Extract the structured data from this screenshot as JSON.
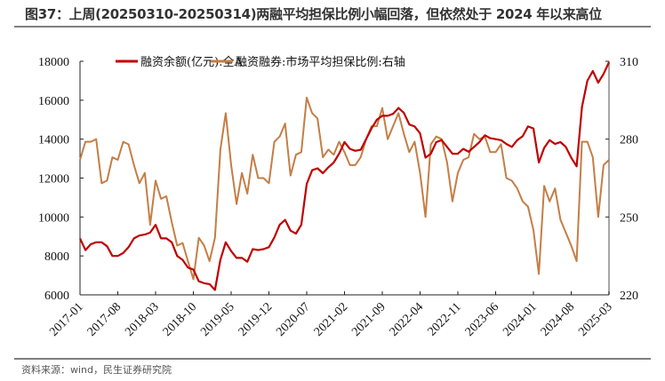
{
  "title": "图37：上周(20250310-20250314)两融平均担保比例小幅回落，但依然处于 2024 年以来高位",
  "source": "资料来源：wind，民生证券研究院",
  "chart_data": {
    "type": "line",
    "title": "图37：上周(20250310-20250314)两融平均担保比例小幅回落，但依然处于 2024 年以来高位",
    "legend_placement": "top",
    "x_start": "2017-01",
    "x_frequency": "monthly",
    "x_tick_labels": [
      "2017-01",
      "2017-08",
      "2018-03",
      "2018-10",
      "2019-05",
      "2019-12",
      "2020-07",
      "2021-02",
      "2021-09",
      "2022-04",
      "2022-11",
      "2023-06",
      "2024-01",
      "2024-08",
      "2025-03"
    ],
    "y_left": {
      "label": "",
      "range": [
        6000,
        18000
      ],
      "ticks": [
        "6000",
        "8000",
        "10000",
        "12000",
        "14000",
        "16000",
        "18000"
      ]
    },
    "y_right": {
      "label": "",
      "range": [
        220,
        310
      ],
      "ticks": [
        "220",
        "250",
        "280",
        "310"
      ]
    },
    "grid": false,
    "series": [
      {
        "name": "融资余额(亿元):全A",
        "axis": "left",
        "color": "#C00000",
        "values": [
          8900,
          8300,
          8600,
          8700,
          8700,
          8500,
          8000,
          8000,
          8150,
          8450,
          8900,
          9050,
          9100,
          9200,
          9600,
          8900,
          8900,
          8700,
          8000,
          7800,
          7400,
          7300,
          6700,
          6600,
          6550,
          6250,
          7800,
          8700,
          8250,
          7900,
          7900,
          7700,
          8350,
          8300,
          8350,
          8450,
          8950,
          9600,
          9850,
          9300,
          9150,
          9600,
          11700,
          12400,
          12500,
          12250,
          12550,
          12800,
          13250,
          13850,
          13500,
          13400,
          13450,
          14000,
          14550,
          15000,
          15200,
          15200,
          15300,
          15600,
          15350,
          14750,
          14650,
          14300,
          13050,
          13250,
          13850,
          13950,
          13600,
          13250,
          13250,
          13500,
          13350,
          13600,
          13850,
          14200,
          14050,
          14000,
          13950,
          13750,
          13600,
          13950,
          14150,
          14650,
          14550,
          12800,
          13550,
          13950,
          13750,
          13850,
          13600,
          13050,
          12600,
          15650,
          17000,
          17500,
          16900,
          17350,
          17950
        ]
      },
      {
        "name": "融资融券:市场平均担保比例:右轴",
        "axis": "right",
        "color": "#C47E45",
        "values": [
          272,
          279,
          279,
          280,
          263,
          264,
          273,
          272,
          279,
          278,
          270,
          263,
          267,
          247,
          264,
          257,
          258,
          248,
          239,
          240,
          233,
          226,
          242,
          239,
          233,
          242,
          276,
          290,
          270,
          255,
          267,
          259,
          274,
          265,
          265,
          263,
          279,
          281,
          286,
          266,
          274,
          275,
          296,
          290,
          288,
          273,
          276,
          274,
          279,
          275,
          270,
          270,
          273,
          280,
          285,
          285,
          292,
          280,
          285,
          290,
          282,
          275,
          279,
          267,
          250,
          278,
          281,
          280,
          271,
          256,
          267,
          272,
          273,
          282,
          280,
          281,
          275,
          275,
          278,
          265,
          264,
          261,
          256,
          254,
          245,
          228,
          262,
          256,
          261,
          249,
          244,
          239,
          233,
          279,
          279,
          273,
          250,
          270,
          272
        ]
      }
    ]
  }
}
